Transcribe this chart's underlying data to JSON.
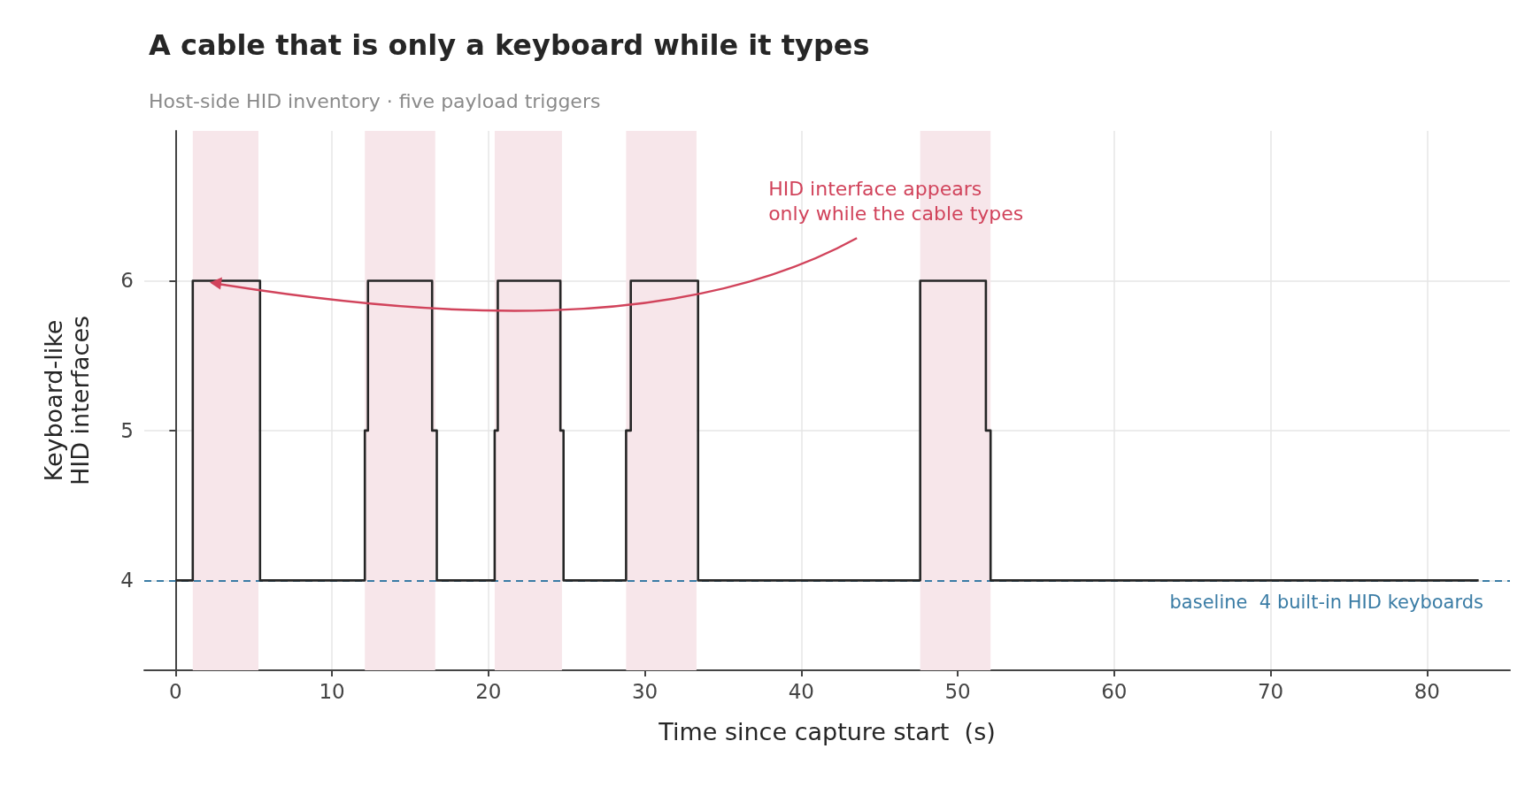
{
  "chart_data": {
    "type": "step",
    "title": "A cable that is only a keyboard while it types",
    "subtitle": "Host-side HID inventory · five payload triggers",
    "xlabel": "Time since capture start  (s)",
    "ylabel": "Keyboard-like\nHID interfaces",
    "x": [
      0,
      1.1,
      5.4,
      12.1,
      12.3,
      16.4,
      16.7,
      20.4,
      20.6,
      24.6,
      24.8,
      28.8,
      29.1,
      33.4,
      47.6,
      51.8,
      52.1,
      83.3
    ],
    "series": [
      {
        "color": "#262626",
        "values": [
          4,
          6,
          4,
          5,
          6,
          5,
          4,
          5,
          6,
          5,
          4,
          5,
          6,
          4,
          6,
          5,
          4,
          4
        ]
      }
    ],
    "xlim": [
      -2,
      85.3
    ],
    "ylim": [
      3.4,
      7.0
    ],
    "xticks": [
      0,
      10,
      20,
      30,
      40,
      50,
      60,
      70,
      80
    ],
    "yticks": [
      4,
      5,
      6
    ],
    "ref_lines": [
      {
        "axis": "y",
        "value": 4,
        "label": "baseline  4 built-in HID keyboards",
        "color": "#3a7ca5",
        "line_style": "dashed"
      }
    ],
    "bands": [
      {
        "axis": "x",
        "from": 1.1,
        "to": 5.3,
        "color": "#f7e6ea"
      },
      {
        "axis": "x",
        "from": 12.1,
        "to": 16.6,
        "color": "#f7e6ea"
      },
      {
        "axis": "x",
        "from": 20.4,
        "to": 24.7,
        "color": "#f7e6ea"
      },
      {
        "axis": "x",
        "from": 28.8,
        "to": 33.3,
        "color": "#f7e6ea"
      },
      {
        "axis": "x",
        "from": 47.6,
        "to": 52.1,
        "color": "#f7e6ea"
      }
    ],
    "annotations": [
      "HID interface appears\nonly while the cable types"
    ],
    "grid": true,
    "line_style": "solid",
    "marker": "none"
  }
}
